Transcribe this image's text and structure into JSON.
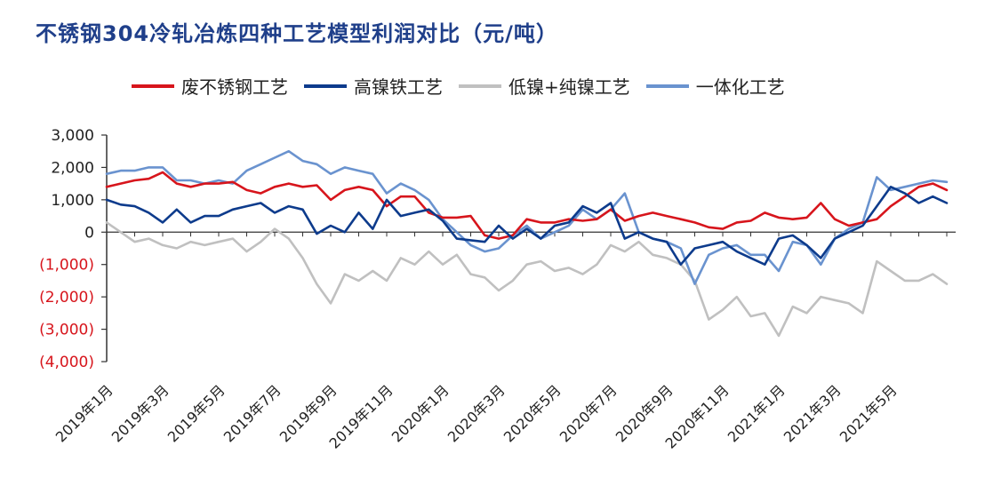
{
  "chart_data": {
    "type": "line",
    "title": "不锈钢304冷轧冶炼四种工艺模型利润对比（元/吨）",
    "ylim": [
      -4000,
      3000
    ],
    "y_ticks": [
      3000,
      2000,
      1000,
      0,
      -1000,
      -2000,
      -3000,
      -4000
    ],
    "y_tick_labels": [
      "3,000",
      "2,000",
      "1,000",
      "0",
      "(1,000)",
      "(2,000)",
      "(3,000)",
      "(4,000)"
    ],
    "x_tick_labels": [
      "2019年1月",
      "2019年3月",
      "2019年5月",
      "2019年7月",
      "2019年9月",
      "2019年11月",
      "2020年1月",
      "2020年3月",
      "2020年5月",
      "2020年7月",
      "2020年9月",
      "2020年11月",
      "2021年1月",
      "2021年3月",
      "2021年5月"
    ],
    "legend_position": "top",
    "grid": false,
    "x_months": [
      0,
      0.5,
      1,
      1.5,
      2,
      2.5,
      3,
      3.5,
      4,
      4.5,
      5,
      5.5,
      6,
      6.5,
      7,
      7.5,
      8,
      8.5,
      9,
      9.5,
      10,
      10.5,
      11,
      11.5,
      12,
      12.5,
      13,
      13.5,
      14,
      14.5,
      15,
      15.5,
      16,
      16.5,
      17,
      17.5,
      18,
      18.5,
      19,
      19.5,
      20,
      20.5,
      21,
      21.5,
      22,
      22.5,
      23,
      23.5,
      24,
      24.5,
      25,
      25.5,
      26,
      26.5,
      27,
      27.5,
      28,
      28.5,
      29,
      29.5,
      30
    ],
    "series": [
      {
        "name": "废不锈钢工艺",
        "color": "#d7151c",
        "values": [
          1400,
          1500,
          1600,
          1650,
          1850,
          1500,
          1400,
          1500,
          1500,
          1550,
          1300,
          1200,
          1400,
          1500,
          1400,
          1450,
          1000,
          1300,
          1400,
          1300,
          800,
          1100,
          1100,
          600,
          450,
          450,
          500,
          -100,
          -200,
          -100,
          400,
          300,
          300,
          400,
          350,
          400,
          700,
          350,
          500,
          600,
          500,
          400,
          300,
          150,
          100,
          300,
          350,
          600,
          450,
          400,
          450,
          900,
          400,
          200,
          300,
          400,
          800,
          1100,
          1400,
          1500,
          1300
        ]
      },
      {
        "name": "高镍铁工艺",
        "color": "#0d3b8c",
        "values": [
          1000,
          850,
          800,
          600,
          300,
          700,
          300,
          500,
          500,
          700,
          800,
          900,
          600,
          800,
          700,
          -50,
          200,
          0,
          600,
          100,
          1000,
          500,
          600,
          700,
          350,
          -200,
          -250,
          -300,
          200,
          -200,
          100,
          -200,
          200,
          300,
          800,
          600,
          900,
          -200,
          0,
          -200,
          -300,
          -1000,
          -500,
          -400,
          -300,
          -600,
          -800,
          -1000,
          -200,
          -100,
          -400,
          -800,
          -200,
          0,
          200,
          800,
          1400,
          1200,
          900,
          1100,
          900
        ]
      },
      {
        "name": "低镍+纯镍工艺",
        "color": "#c0c0c0",
        "values": [
          300,
          0,
          -300,
          -200,
          -400,
          -500,
          -300,
          -400,
          -300,
          -200,
          -600,
          -300,
          100,
          -200,
          -800,
          -1600,
          -2200,
          -1300,
          -1500,
          -1200,
          -1500,
          -800,
          -1000,
          -600,
          -1000,
          -700,
          -1300,
          -1400,
          -1800,
          -1500,
          -1000,
          -900,
          -1200,
          -1100,
          -1300,
          -1000,
          -400,
          -600,
          -300,
          -700,
          -800,
          -1000,
          -1500,
          -2700,
          -2400,
          -2000,
          -2600,
          -2500,
          -3200,
          -2300,
          -2500,
          -2000,
          -2100,
          -2200,
          -2500,
          -900,
          -1200,
          -1500,
          -1500,
          -1300,
          -1600
        ]
      },
      {
        "name": "一体化工艺",
        "color": "#6a93cf",
        "values": [
          1800,
          1900,
          1900,
          2000,
          2000,
          1600,
          1600,
          1500,
          1600,
          1500,
          1900,
          2100,
          2300,
          2500,
          2200,
          2100,
          1800,
          2000,
          1900,
          1800,
          1200,
          1500,
          1300,
          1000,
          400,
          0,
          -400,
          -600,
          -500,
          -100,
          200,
          -200,
          0,
          200,
          700,
          400,
          700,
          1200,
          0,
          -200,
          -300,
          -500,
          -1600,
          -700,
          -500,
          -400,
          -700,
          -700,
          -1200,
          -300,
          -400,
          -1000,
          -200,
          100,
          300,
          1700,
          1300,
          1400,
          1500,
          1600,
          1550
        ]
      }
    ]
  }
}
